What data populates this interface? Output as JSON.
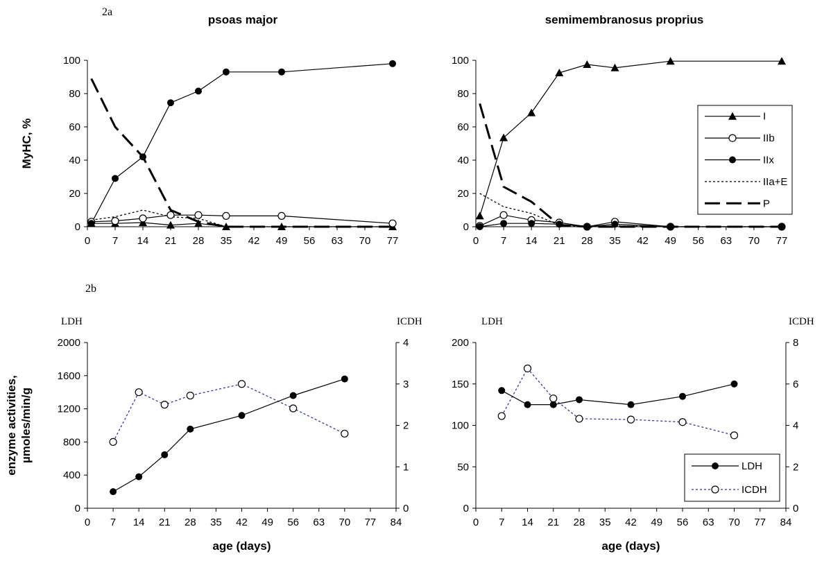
{
  "figure": {
    "panel_labels": {
      "a": "2a",
      "b": "2b"
    }
  },
  "chart_data": [
    {
      "type": "line",
      "title": "psoas major",
      "xlabel": "",
      "ylabel": "MyHC, %",
      "xlim": [
        0,
        77
      ],
      "ylim": [
        0,
        100
      ],
      "xticks": [
        "0",
        "7",
        "14",
        "21",
        "28",
        "35",
        "42",
        "49",
        "56",
        "63",
        "70",
        "77"
      ],
      "yticks": [
        "0",
        "20",
        "40",
        "60",
        "80",
        "100"
      ],
      "grid": false,
      "series": [
        {
          "name": "I",
          "marker": "triangle",
          "dash": "solid",
          "x": [
            1,
            7,
            14,
            21,
            28,
            35,
            49,
            77
          ],
          "y": [
            2,
            2,
            2.5,
            1,
            2,
            0,
            0,
            0
          ]
        },
        {
          "name": "IIb",
          "marker": "circle-open",
          "dash": "solid",
          "x": [
            1,
            7,
            14,
            21,
            28,
            35,
            49,
            77
          ],
          "y": [
            3,
            3.5,
            5,
            7,
            7,
            6.5,
            6.5,
            2
          ]
        },
        {
          "name": "IIx",
          "marker": "circle-filled",
          "dash": "solid",
          "x": [
            1,
            7,
            14,
            21,
            28,
            35,
            49,
            77
          ],
          "y": [
            2,
            29,
            42,
            74.5,
            81.5,
            93,
            93,
            98
          ]
        },
        {
          "name": "IIa+E",
          "marker": "none",
          "dash": "dotted",
          "x": [
            1,
            7,
            14,
            21,
            28,
            35,
            49,
            77
          ],
          "y": [
            4,
            6,
            10,
            6,
            5,
            0,
            0,
            0
          ]
        },
        {
          "name": "P",
          "marker": "none",
          "dash": "long-dash",
          "x": [
            1,
            7,
            14,
            21,
            28,
            35,
            49,
            77
          ],
          "y": [
            89,
            60,
            42,
            10,
            3,
            0,
            0,
            0
          ]
        }
      ]
    },
    {
      "type": "line",
      "title": "semimembranosus proprius",
      "xlabel": "",
      "ylabel": "",
      "xlim": [
        0,
        77
      ],
      "ylim": [
        0,
        100
      ],
      "xticks": [
        "0",
        "7",
        "14",
        "21",
        "28",
        "35",
        "42",
        "49",
        "56",
        "63",
        "70",
        "77"
      ],
      "yticks": [
        "0",
        "20",
        "40",
        "60",
        "80",
        "100"
      ],
      "grid": false,
      "legend": "right",
      "series": [
        {
          "name": "I",
          "marker": "triangle",
          "dash": "solid",
          "x": [
            1,
            7,
            14,
            21,
            28,
            35,
            49,
            77
          ],
          "y": [
            6.5,
            53.5,
            68.5,
            92.5,
            97.5,
            95.5,
            99.5,
            99.5
          ]
        },
        {
          "name": "IIb",
          "marker": "circle-open",
          "dash": "solid",
          "x": [
            1,
            7,
            14,
            21,
            28,
            35,
            49,
            77
          ],
          "y": [
            0.5,
            7,
            4,
            2.5,
            0,
            3,
            0,
            0
          ]
        },
        {
          "name": "IIx",
          "marker": "circle-filled",
          "dash": "solid",
          "x": [
            1,
            7,
            14,
            21,
            28,
            35,
            49,
            77
          ],
          "y": [
            0,
            2,
            2,
            1.5,
            0,
            1.5,
            0,
            0
          ]
        },
        {
          "name": "IIa+E",
          "marker": "none",
          "dash": "dotted",
          "x": [
            1,
            7,
            14,
            21,
            28,
            35,
            49,
            77
          ],
          "y": [
            20,
            12,
            8,
            1,
            0,
            0.5,
            0,
            0
          ]
        },
        {
          "name": "P",
          "marker": "none",
          "dash": "long-dash",
          "x": [
            1,
            7,
            14,
            21,
            28,
            35,
            49,
            77
          ],
          "y": [
            74,
            24,
            15,
            1,
            0,
            0,
            0,
            0
          ]
        }
      ]
    },
    {
      "type": "line",
      "title": "",
      "xlabel": "age (days)",
      "ylabel": "enzyme activities, µmoles/min/g",
      "ylabel_left": "LDH",
      "ylabel_right": "ICDH",
      "xlim": [
        0,
        84
      ],
      "ylim": [
        0,
        2000
      ],
      "y2lim": [
        0,
        4
      ],
      "xticks": [
        "0",
        "7",
        "14",
        "21",
        "28",
        "35",
        "42",
        "49",
        "56",
        "63",
        "70",
        "77",
        "84"
      ],
      "yticks": [
        "0",
        "400",
        "800",
        "1200",
        "1600",
        "2000"
      ],
      "y2ticks": [
        "0",
        "1",
        "2",
        "3",
        "4"
      ],
      "grid": false,
      "series": [
        {
          "name": "LDH",
          "axis": "left",
          "marker": "circle-filled",
          "dash": "solid",
          "color": "#000000",
          "x": [
            7,
            14,
            21,
            28,
            42,
            56,
            70
          ],
          "y": [
            200,
            380,
            645,
            955,
            1120,
            1360,
            1560
          ]
        },
        {
          "name": "ICDH",
          "axis": "right",
          "marker": "circle-open",
          "dash": "dotted",
          "color": "#33339a",
          "x": [
            7,
            14,
            21,
            28,
            42,
            56,
            70
          ],
          "y": [
            1.6,
            2.8,
            2.5,
            2.72,
            3.0,
            2.41,
            1.8
          ]
        }
      ]
    },
    {
      "type": "line",
      "title": "",
      "xlabel": "age (days)",
      "ylabel": "",
      "ylabel_left": "LDH",
      "ylabel_right": "ICDH",
      "xlim": [
        0,
        84
      ],
      "ylim": [
        0,
        200
      ],
      "y2lim": [
        0,
        8
      ],
      "xticks": [
        "0",
        "7",
        "14",
        "21",
        "28",
        "35",
        "42",
        "49",
        "56",
        "63",
        "70",
        "77",
        "84"
      ],
      "yticks": [
        "0",
        "50",
        "100",
        "150",
        "200"
      ],
      "y2ticks": [
        "0",
        "2",
        "4",
        "6",
        "8"
      ],
      "grid": false,
      "legend": "bottom-right",
      "series": [
        {
          "name": "LDH",
          "axis": "left",
          "marker": "circle-filled",
          "dash": "solid",
          "color": "#000000",
          "x": [
            7,
            14,
            21,
            28,
            42,
            56,
            70
          ],
          "y": [
            142,
            125,
            125,
            131,
            125,
            135,
            150
          ]
        },
        {
          "name": "ICDH",
          "axis": "right",
          "marker": "circle-open",
          "dash": "dotted",
          "color": "#33339a",
          "x": [
            7,
            14,
            21,
            28,
            42,
            56,
            70
          ],
          "y": [
            4.45,
            6.75,
            5.3,
            4.32,
            4.28,
            4.16,
            3.52
          ]
        }
      ]
    }
  ]
}
